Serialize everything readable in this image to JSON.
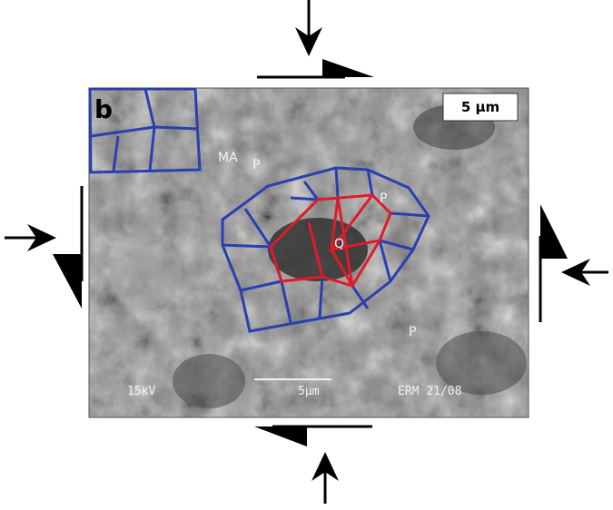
{
  "panel_label": "b",
  "scale_bar_label": "5 µm",
  "labels": [
    "MA",
    "P",
    "P",
    "Q",
    "P"
  ],
  "microscope": {
    "voltage": "15kV",
    "scale": "5µm",
    "code": "ERM 21/08"
  }
}
